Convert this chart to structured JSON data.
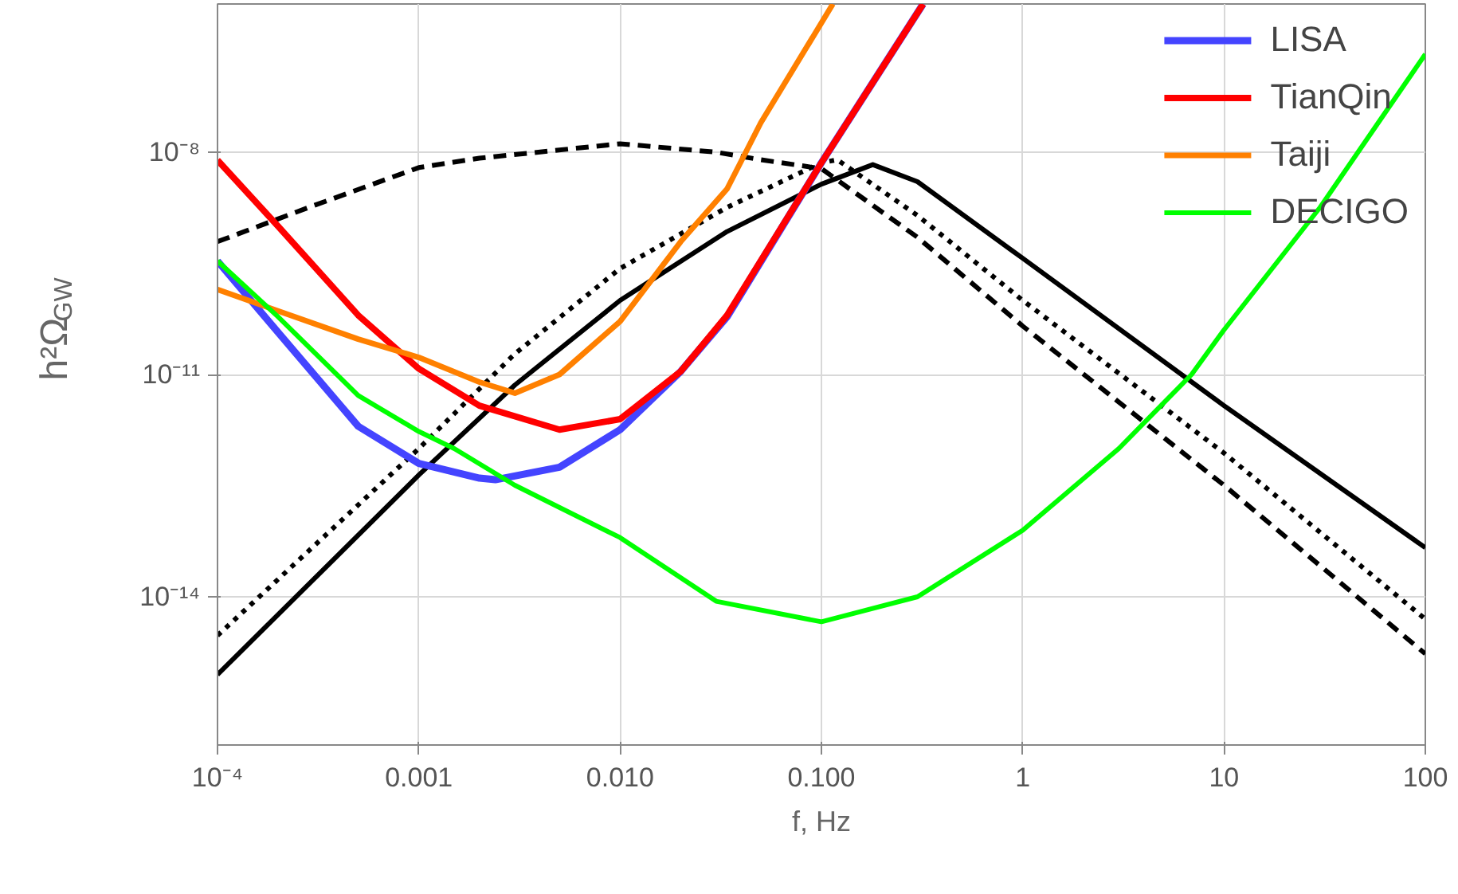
{
  "chart_data": {
    "type": "line",
    "xlabel": "f, Hz",
    "ylabel": "h²Ω$_{GW}$",
    "log": "xy",
    "grid": true,
    "legend": "top right",
    "xlim": [
      0.0001,
      100
    ],
    "ylim": [
      1e-16,
      1e-06
    ],
    "xticks": [
      {
        "value": 0.0001,
        "label": "10⁻⁴"
      },
      {
        "value": 0.001,
        "label": "0.001"
      },
      {
        "value": 0.01,
        "label": "0.010"
      },
      {
        "value": 0.1,
        "label": "0.100"
      },
      1,
      10,
      100
    ],
    "yticks": [
      {
        "value": 1e-08,
        "label": "10⁻⁸"
      },
      {
        "value": 1e-11,
        "label": "10⁻¹¹"
      },
      {
        "value": 1e-14,
        "label": "10⁻¹⁴"
      }
    ],
    "series": [
      {
        "color": "#000000",
        "line_style": "dashed",
        "x": [
          0.0001,
          0.0003,
          0.001,
          0.002,
          0.01,
          0.03,
          0.05,
          0.1,
          0.3,
          1,
          10,
          100
        ],
        "values": [
          6.2e-10,
          1.9e-09,
          6.2e-09,
          8.3e-09,
          1.3e-08,
          1e-08,
          7.9e-09,
          6e-09,
          7.1e-10,
          4.5e-11,
          3.2e-13,
          1.7e-15
        ]
      },
      {
        "color": "#000000",
        "line_style": "dotted",
        "x": [
          0.0001,
          0.001,
          0.003,
          0.01,
          0.034,
          0.1,
          0.12,
          0.3,
          1,
          10,
          100
        ],
        "values": [
          3e-15,
          1e-12,
          1.9e-11,
          2.7e-10,
          1.8e-09,
          7.2e-09,
          7.9e-09,
          1.4e-09,
          1e-10,
          8.7e-13,
          5e-15
        ]
      },
      {
        "color": "#000000",
        "line_style": "solid",
        "x": [
          0.0001,
          0.001,
          0.003,
          0.01,
          0.034,
          0.1,
          0.18,
          0.3,
          1,
          10,
          100
        ],
        "values": [
          8.9e-16,
          4.4e-13,
          7.2e-12,
          1e-10,
          8.5e-10,
          3.7e-09,
          6.8e-09,
          4e-09,
          3.7e-10,
          3.8e-12,
          4.6e-14
        ]
      },
      {
        "name": "LISA",
        "color": "#4444ff",
        "line_style": "solid",
        "x": [
          0.0001,
          0.0002,
          0.0005,
          0.001,
          0.002,
          0.0024,
          0.005,
          0.01,
          0.02,
          0.034,
          0.1,
          0.32
        ],
        "values": [
          3.4e-10,
          3.7e-11,
          2e-12,
          6.3e-13,
          4e-13,
          3.8e-13,
          5.6e-13,
          1.8e-12,
          1.1e-11,
          6e-11,
          7.2e-09,
          1e-06
        ]
      },
      {
        "name": "TianQin",
        "color": "#ff0000",
        "line_style": "solid",
        "x": [
          0.0001,
          0.0002,
          0.0005,
          0.001,
          0.002,
          0.005,
          0.01,
          0.02,
          0.034,
          0.1,
          0.32
        ],
        "values": [
          7.8e-09,
          1e-09,
          6.3e-11,
          1.2e-11,
          3.8e-12,
          1.8e-12,
          2.5e-12,
          1.1e-11,
          6.3e-11,
          7.2e-09,
          1e-06
        ]
      },
      {
        "name": "Taiji",
        "color": "#ff8000",
        "line_style": "solid",
        "x": [
          0.0001,
          0.0002,
          0.0005,
          0.001,
          0.002,
          0.003,
          0.005,
          0.01,
          0.02,
          0.034,
          0.05,
          0.114
        ],
        "values": [
          1.4e-10,
          7.2e-11,
          3e-11,
          1.7e-11,
          7.9e-12,
          5.6e-12,
          1e-11,
          5.2e-11,
          6.2e-10,
          3.2e-09,
          2.5e-08,
          1e-06
        ]
      },
      {
        "name": "DECIGO",
        "color": "#00ff00",
        "line_style": "solid",
        "x": [
          0.0001,
          0.0002,
          0.0005,
          0.001,
          0.0015,
          0.003,
          0.01,
          0.03,
          0.1,
          0.3,
          1,
          3,
          6.9,
          10,
          30,
          100
        ],
        "values": [
          3.4e-10,
          6e-11,
          5.2e-12,
          1.7e-12,
          1e-12,
          3.2e-13,
          6.3e-14,
          8.7e-15,
          4.6e-15,
          1e-14,
          7.9e-14,
          1e-12,
          1e-11,
          4e-11,
          1.8e-09,
          2.1e-07
        ]
      }
    ]
  }
}
